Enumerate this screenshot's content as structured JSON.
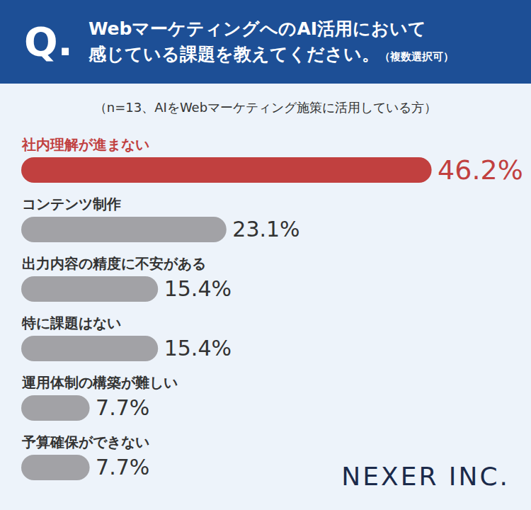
{
  "chart_data": {
    "type": "bar",
    "orientation": "horizontal",
    "title_prefix": "Q.",
    "title": "WebマーケティングへのAI活用において\n感じている課題を教えてください。",
    "title_note": "（複数選択可）",
    "subtitle": "（n=13、AIをWebマーケティング施策に活用している方）",
    "categories": [
      "社内理解が進まない",
      "コンテンツ制作",
      "出力内容の精度に不安がある",
      "特に課題はない",
      "運用体制の構築が難しい",
      "予算確保ができない"
    ],
    "values": [
      46.2,
      23.1,
      15.4,
      15.4,
      7.7,
      7.7
    ],
    "value_labels": [
      "46.2%",
      "23.1%",
      "15.4%",
      "15.4%",
      "7.7%",
      "7.7%"
    ],
    "colors": [
      "#c1403f",
      "#a2a2a6",
      "#a2a2a6",
      "#a2a2a6",
      "#a2a2a6",
      "#a2a2a6"
    ],
    "data_labels": true,
    "tick_labels": false,
    "xlim": [
      0,
      55
    ],
    "caption": "NEXER INC."
  }
}
